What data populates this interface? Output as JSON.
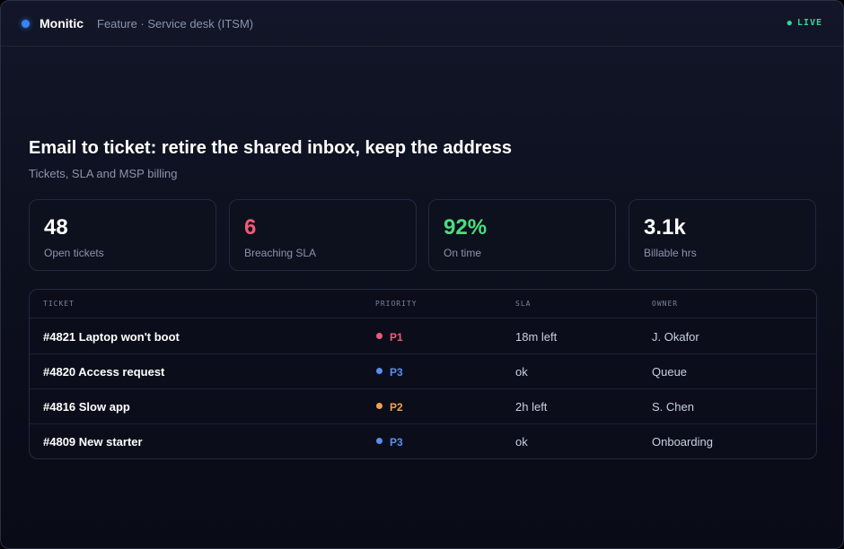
{
  "colors": {
    "accent_blue": "#3b82f6",
    "live_green": "#34d399",
    "danger": "#f05a78",
    "success": "#4ade80",
    "warning": "#f5a04a",
    "info": "#5b8def"
  },
  "header": {
    "brand": "Monitic",
    "breadcrumb": "Feature · Service desk (ITSM)",
    "live_label": "LIVE",
    "live_icon": "live-dot-icon"
  },
  "main": {
    "title": "Email to ticket: retire the shared inbox, keep the address",
    "subtitle": "Tickets, SLA and MSP billing"
  },
  "stats": [
    {
      "value": "48",
      "label": "Open tickets",
      "color": "#ffffff"
    },
    {
      "value": "6",
      "label": "Breaching SLA",
      "color": "#f05a78"
    },
    {
      "value": "92%",
      "label": "On time",
      "color": "#4ade80"
    },
    {
      "value": "3.1k",
      "label": "Billable hrs",
      "color": "#ffffff"
    }
  ],
  "table": {
    "columns": [
      "TICKET",
      "PRIORITY",
      "SLA",
      "OWNER"
    ],
    "rows": [
      {
        "ticket": "#4821 Laptop won't boot",
        "priority": "P1",
        "priority_color": "#f05a78",
        "sla": "18m left",
        "owner": "J. Okafor"
      },
      {
        "ticket": "#4820 Access request",
        "priority": "P3",
        "priority_color": "#5b8def",
        "sla": "ok",
        "owner": "Queue"
      },
      {
        "ticket": "#4816 Slow app",
        "priority": "P2",
        "priority_color": "#f5a04a",
        "sla": "2h left",
        "owner": "S. Chen"
      },
      {
        "ticket": "#4809 New starter",
        "priority": "P3",
        "priority_color": "#5b8def",
        "sla": "ok",
        "owner": "Onboarding"
      }
    ]
  }
}
